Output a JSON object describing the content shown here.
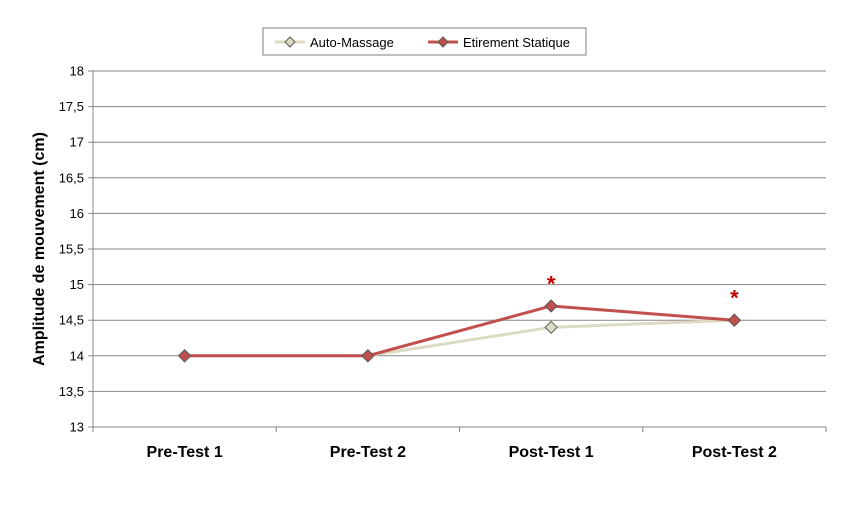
{
  "chart_data": {
    "type": "line",
    "title": "",
    "xlabel": "",
    "ylabel": "Amplitude de mouvement (cm)",
    "categories": [
      "Pre-Test 1",
      "Pre-Test 2",
      "Post-Test 1",
      "Post-Test 2"
    ],
    "ylim": [
      13,
      18
    ],
    "yticks": [
      13,
      13.5,
      14,
      14.5,
      15,
      15.5,
      16,
      16.5,
      17,
      17.5,
      18
    ],
    "ytick_labels": [
      "13",
      "13,5",
      "14",
      "14,5",
      "15",
      "15,5",
      "16",
      "16,5",
      "17",
      "17,5",
      "18"
    ],
    "grid": true,
    "legend_position": "top-center",
    "series": [
      {
        "name": "Auto-Massage",
        "values": [
          14.0,
          14.0,
          14.4,
          14.5
        ],
        "color": "#DDD9C3",
        "marker_color": "#DDD9C3"
      },
      {
        "name": "Etirement Statique",
        "values": [
          14.0,
          14.0,
          14.7,
          14.5
        ],
        "color": "#C0504D",
        "marker_color": "#C0504D"
      }
    ],
    "annotations": [
      {
        "text": "*",
        "category": "Post-Test 1",
        "y": 15.1,
        "color": "#C00000"
      },
      {
        "text": "*",
        "category": "Post-Test 2",
        "y": 14.9,
        "color": "#C00000"
      }
    ]
  }
}
